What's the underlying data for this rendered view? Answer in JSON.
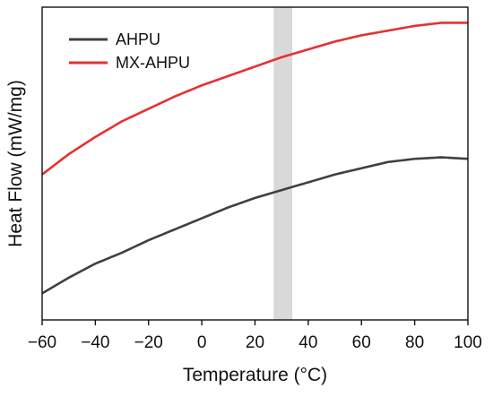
{
  "chart_data": {
    "type": "line",
    "title": "",
    "xlabel": "Temperature (°C)",
    "ylabel": "Heat Flow (mW/mg)",
    "xlim": [
      -60,
      100
    ],
    "ylim": [
      0,
      1
    ],
    "x_ticks": [
      -60,
      -40,
      -20,
      0,
      20,
      40,
      60,
      80,
      100
    ],
    "y_ticks_shown": false,
    "grid": false,
    "legend_position": "top-left",
    "shaded_region": {
      "x_start": 27,
      "x_end": 34,
      "color": "#d9d9d9"
    },
    "series": [
      {
        "name": "AHPU",
        "color": "#404040",
        "x": [
          -60,
          -50,
          -40,
          -30,
          -20,
          -10,
          0,
          10,
          20,
          30,
          40,
          50,
          60,
          70,
          80,
          90,
          100
        ],
        "y": [
          0.085,
          0.135,
          0.18,
          0.215,
          0.255,
          0.29,
          0.325,
          0.36,
          0.39,
          0.415,
          0.44,
          0.465,
          0.485,
          0.505,
          0.515,
          0.52,
          0.515
        ]
      },
      {
        "name": "MX-AHPU",
        "color": "#e83030",
        "x": [
          -60,
          -50,
          -40,
          -30,
          -20,
          -10,
          0,
          10,
          20,
          30,
          40,
          50,
          60,
          70,
          80,
          90,
          100
        ],
        "y": [
          0.465,
          0.53,
          0.585,
          0.635,
          0.675,
          0.715,
          0.75,
          0.78,
          0.81,
          0.84,
          0.865,
          0.89,
          0.91,
          0.925,
          0.94,
          0.95,
          0.95
        ]
      }
    ]
  }
}
